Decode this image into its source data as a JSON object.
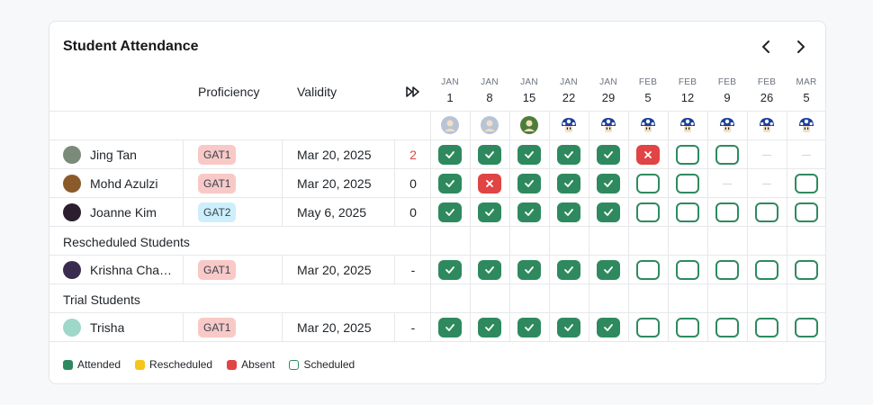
{
  "title": "Student Attendance",
  "columns": {
    "proficiency": "Proficiency",
    "validity": "Validity"
  },
  "dates": [
    {
      "month": "JAN",
      "day": "1"
    },
    {
      "month": "JAN",
      "day": "8"
    },
    {
      "month": "JAN",
      "day": "15"
    },
    {
      "month": "JAN",
      "day": "22"
    },
    {
      "month": "JAN",
      "day": "29"
    },
    {
      "month": "FEB",
      "day": "5"
    },
    {
      "month": "FEB",
      "day": "12"
    },
    {
      "month": "FEB",
      "day": "9"
    },
    {
      "month": "FEB",
      "day": "26"
    },
    {
      "month": "MAR",
      "day": "5"
    }
  ],
  "instructor_icons": [
    "person-avatar-icon",
    "person-avatar-icon",
    "person-avatar-icon",
    "mushroom-avatar-icon",
    "mushroom-avatar-icon",
    "mushroom-avatar-icon",
    "mushroom-avatar-icon",
    "mushroom-avatar-icon",
    "mushroom-avatar-icon",
    "mushroom-avatar-icon"
  ],
  "sections": {
    "rescheduled": "Rescheduled Students",
    "trial": "Trial Students"
  },
  "students": [
    {
      "name": "Jing Tan",
      "proficiency": "GAT1",
      "validity": "Mar 20, 2025",
      "count": "2",
      "attendance": [
        "attended",
        "attended",
        "attended",
        "attended",
        "attended",
        "absent",
        "scheduled",
        "scheduled",
        "none",
        "none"
      ]
    },
    {
      "name": "Mohd Azulzi",
      "proficiency": "GAT1",
      "validity": "Mar 20, 2025",
      "count": "0",
      "attendance": [
        "attended",
        "absent",
        "attended",
        "attended",
        "attended",
        "scheduled",
        "scheduled",
        "none",
        "none",
        "scheduled"
      ]
    },
    {
      "name": "Joanne Kim",
      "proficiency": "GAT2",
      "validity": "May 6, 2025",
      "count": "0",
      "attendance": [
        "attended",
        "attended",
        "attended",
        "attended",
        "attended",
        "scheduled",
        "scheduled",
        "scheduled",
        "scheduled",
        "scheduled"
      ]
    },
    {
      "name": "Krishna Cha…",
      "proficiency": "GAT1",
      "validity": "Mar 20, 2025",
      "count": "-",
      "attendance": [
        "attended",
        "attended",
        "attended",
        "attended",
        "attended",
        "scheduled",
        "scheduled",
        "scheduled",
        "scheduled",
        "scheduled"
      ]
    },
    {
      "name": "Trisha",
      "proficiency": "GAT1",
      "validity": "Mar 20, 2025",
      "count": "-",
      "attendance": [
        "attended",
        "attended",
        "attended",
        "attended",
        "attended",
        "scheduled",
        "scheduled",
        "scheduled",
        "scheduled",
        "scheduled"
      ]
    }
  ],
  "legend": [
    {
      "label": "Attended",
      "color": "#2e8a5e"
    },
    {
      "label": "Rescheduled",
      "color": "#f5c518"
    },
    {
      "label": "Absent",
      "color": "#e04444"
    },
    {
      "label": "Scheduled",
      "color": "#ffffff"
    }
  ],
  "colors": {
    "attended": "#2e8a5e",
    "absent": "#e04444",
    "count_highlight": "#e04444"
  }
}
